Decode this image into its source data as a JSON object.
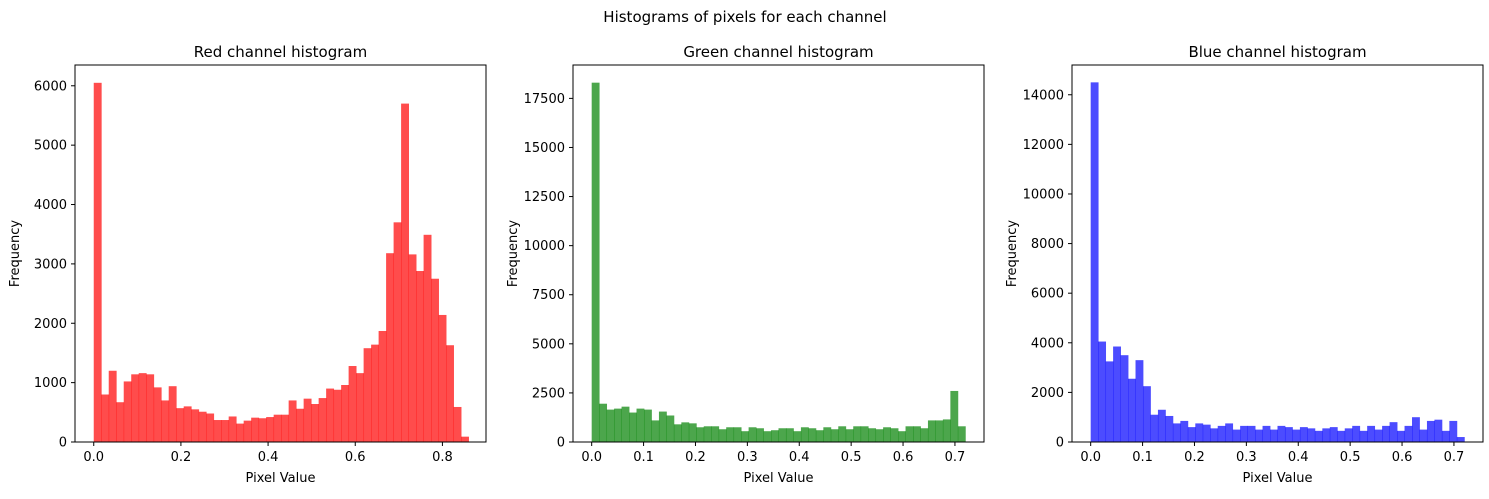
{
  "figure": {
    "suptitle": "Histograms of pixels for each channel"
  },
  "chart_data": [
    {
      "type": "bar",
      "title": "Red channel histogram",
      "xlabel": "Pixel Value",
      "ylabel": "Frequency",
      "color": "#ff0000",
      "alpha": 0.7,
      "xlim": [
        -0.043,
        0.9
      ],
      "ylim": [
        0,
        6350
      ],
      "xticks": [
        0.0,
        0.2,
        0.4,
        0.6,
        0.8
      ],
      "xtick_labels": [
        "0.0",
        "0.2",
        "0.4",
        "0.6",
        "0.8"
      ],
      "yticks": [
        0,
        1000,
        2000,
        3000,
        4000,
        5000,
        6000
      ],
      "ytick_labels": [
        "0",
        "1000",
        "2000",
        "3000",
        "4000",
        "5000",
        "6000"
      ],
      "bin_start": 0.0,
      "bin_width": 0.0172,
      "values": [
        6050,
        800,
        1200,
        670,
        1020,
        1140,
        1160,
        1140,
        920,
        700,
        940,
        570,
        600,
        550,
        510,
        480,
        370,
        370,
        430,
        310,
        360,
        410,
        400,
        420,
        460,
        460,
        700,
        560,
        730,
        640,
        740,
        900,
        880,
        960,
        1280,
        1160,
        1580,
        1640,
        1870,
        3180,
        3700,
        5700,
        3160,
        2880,
        3490,
        2750,
        2140,
        1630,
        590,
        90
      ]
    },
    {
      "type": "bar",
      "title": "Green channel histogram",
      "xlabel": "Pixel Value",
      "ylabel": "Frequency",
      "color": "#008000",
      "alpha": 0.7,
      "xlim": [
        -0.036,
        0.756
      ],
      "ylim": [
        0,
        19200
      ],
      "xticks": [
        0.0,
        0.1,
        0.2,
        0.3,
        0.4,
        0.5,
        0.6,
        0.7
      ],
      "xtick_labels": [
        "0.0",
        "0.1",
        "0.2",
        "0.3",
        "0.4",
        "0.5",
        "0.6",
        "0.7"
      ],
      "yticks": [
        0,
        2500,
        5000,
        7500,
        10000,
        12500,
        15000,
        17500
      ],
      "ytick_labels": [
        "0",
        "2500",
        "5000",
        "7500",
        "10000",
        "12500",
        "15000",
        "17500"
      ],
      "bin_start": 0.0,
      "bin_width": 0.0144,
      "values": [
        18300,
        1950,
        1650,
        1700,
        1800,
        1500,
        1700,
        1650,
        1100,
        1550,
        1350,
        900,
        1000,
        950,
        750,
        800,
        800,
        650,
        750,
        750,
        550,
        750,
        700,
        550,
        600,
        700,
        700,
        550,
        750,
        700,
        600,
        750,
        650,
        800,
        650,
        800,
        800,
        700,
        650,
        750,
        700,
        550,
        800,
        800,
        700,
        1100,
        1100,
        1150,
        2600,
        800
      ]
    },
    {
      "type": "bar",
      "title": "Blue channel histogram",
      "xlabel": "Pixel Value",
      "ylabel": "Frequency",
      "color": "#0000ff",
      "alpha": 0.7,
      "xlim": [
        -0.036,
        0.756
      ],
      "ylim": [
        0,
        15200
      ],
      "xticks": [
        0.0,
        0.1,
        0.2,
        0.3,
        0.4,
        0.5,
        0.6,
        0.7
      ],
      "xtick_labels": [
        "0.0",
        "0.1",
        "0.2",
        "0.3",
        "0.4",
        "0.5",
        "0.6",
        "0.7"
      ],
      "yticks": [
        0,
        2000,
        4000,
        6000,
        8000,
        10000,
        12000,
        14000
      ],
      "ytick_labels": [
        "0",
        "2000",
        "4000",
        "6000",
        "8000",
        "10000",
        "12000",
        "14000"
      ],
      "bin_start": 0.0,
      "bin_width": 0.0144,
      "values": [
        14500,
        4050,
        3250,
        3850,
        3500,
        2550,
        3300,
        2250,
        1100,
        1300,
        1050,
        750,
        850,
        600,
        750,
        700,
        550,
        650,
        750,
        500,
        650,
        650,
        500,
        650,
        500,
        650,
        600,
        500,
        600,
        550,
        450,
        550,
        600,
        450,
        550,
        650,
        450,
        650,
        500,
        650,
        800,
        450,
        650,
        1000,
        500,
        850,
        900,
        450,
        850,
        200
      ]
    }
  ]
}
